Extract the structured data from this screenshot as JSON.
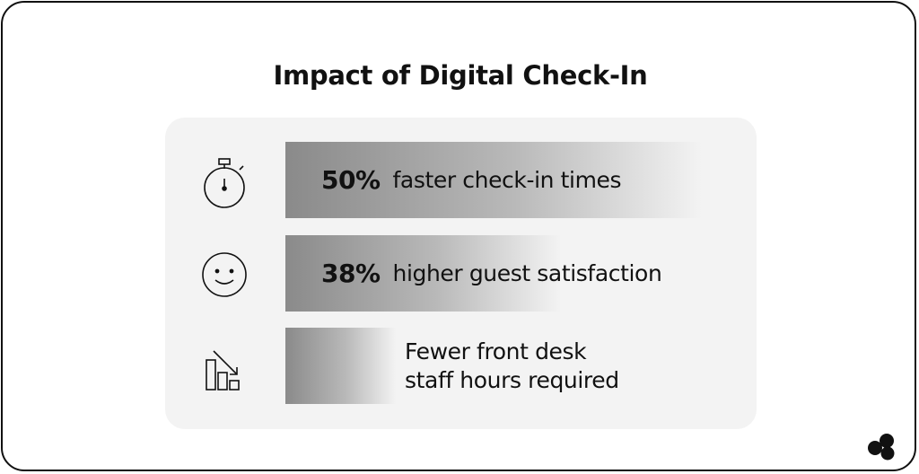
{
  "title": "Impact of Digital Check-In",
  "chart_data": {
    "type": "bar",
    "title": "Impact of Digital Check-In",
    "orientation": "horizontal",
    "categories": [
      "faster check-in times",
      "higher guest satisfaction",
      "Fewer front desk staff hours required"
    ],
    "values": [
      50,
      38,
      null
    ],
    "value_labels": [
      "50%",
      "38%",
      ""
    ],
    "bar_fill_fraction": [
      0.68,
      0.45,
      0.18
    ],
    "bar_style": "gradient dark-to-light gray",
    "colors": {
      "bar_dark": "#8a8a8a",
      "bar_light": "#f3f3f3",
      "panel": "#f3f3f3",
      "text": "#111111"
    }
  },
  "rows": [
    {
      "icon": "stopwatch-icon",
      "value_label": "50%",
      "description": "faster check-in times"
    },
    {
      "icon": "smiley-face-icon",
      "value_label": "38%",
      "description": "higher guest satisfaction"
    },
    {
      "icon": "declining-bar-chart-icon",
      "value_label": "",
      "description": "Fewer front desk\nstaff hours required"
    }
  ],
  "logo": {
    "icon": "three-dots-logo-icon"
  }
}
